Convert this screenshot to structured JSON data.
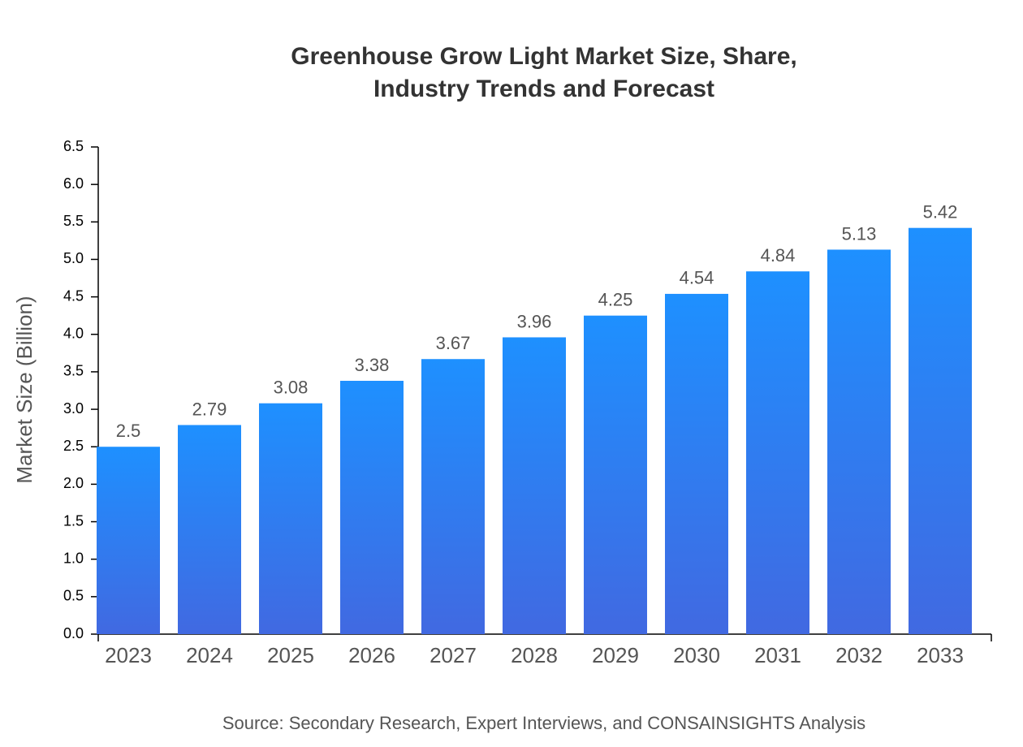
{
  "chart_data": {
    "type": "bar",
    "title": "Greenhouse Grow Light Market Size, Share, Industry Trends and Forecast",
    "y_label": "Market Size (Billion)",
    "source": "Source: Secondary Research, Expert Interviews, and CONSAINSIGHTS Analysis",
    "categories": [
      "2023",
      "2024",
      "2025",
      "2026",
      "2027",
      "2028",
      "2029",
      "2030",
      "2031",
      "2032",
      "2033"
    ],
    "values": [
      2.5,
      2.79,
      3.08,
      3.38,
      3.67,
      3.96,
      4.25,
      4.54,
      4.84,
      5.13,
      5.42
    ],
    "color": [
      "#1e90ff",
      "#4169e1"
    ],
    "ylim": [
      0,
      6.5
    ],
    "yticks": [
      {
        "value": 0,
        "label": "0.0"
      },
      0.5,
      {
        "value": 1,
        "label": "1.0"
      },
      1.5,
      {
        "value": 2,
        "label": "2.0"
      },
      2.5,
      {
        "value": 3,
        "label": "3.0"
      },
      3.5,
      {
        "value": 4,
        "label": "4.0"
      },
      4.5,
      {
        "value": 5,
        "label": "5.0"
      },
      5.5,
      {
        "value": 6,
        "label": "6.0"
      },
      6.5
    ],
    "grid": false
  }
}
